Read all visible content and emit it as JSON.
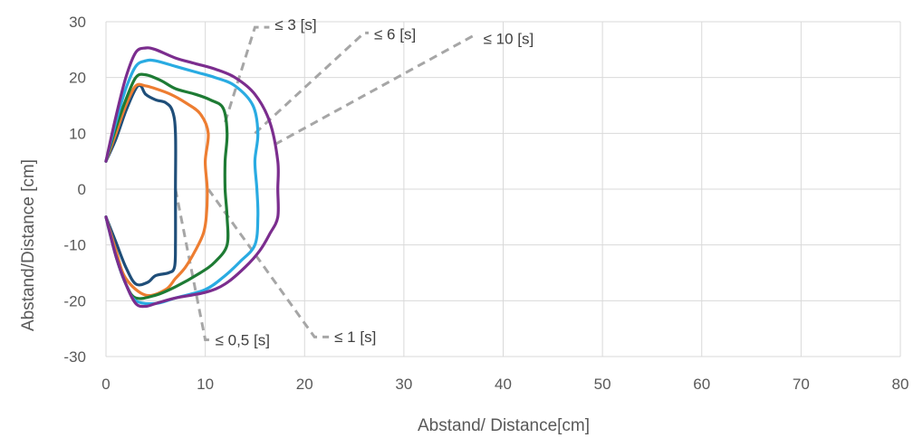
{
  "chart_data": {
    "type": "line",
    "title": "",
    "xlabel": "Abstand/ Distance[cm]",
    "ylabel": "Abstand/Distance [cm]",
    "xlim": [
      0,
      80
    ],
    "ylim": [
      -30,
      30
    ],
    "xticks": [
      0,
      10,
      20,
      30,
      40,
      50,
      60,
      70,
      80
    ],
    "yticks": [
      -30,
      -20,
      -10,
      0,
      10,
      20,
      30
    ],
    "xtick_labels": [
      "0",
      "10",
      "20",
      "30",
      "40",
      "50",
      "60",
      "70",
      "80"
    ],
    "ytick_labels": [
      "-30",
      "-20",
      "-10",
      "0",
      "10",
      "20",
      "30"
    ],
    "grid": true,
    "legend": "none",
    "series": [
      {
        "label": "≤ 0,5 [s]",
        "color": "#1f4e79",
        "points": [
          [
            0,
            5
          ],
          [
            1,
            9
          ],
          [
            2,
            14
          ],
          [
            3,
            18
          ],
          [
            3.5,
            18.5
          ],
          [
            4,
            17
          ],
          [
            5,
            16
          ],
          [
            6,
            15.5
          ],
          [
            6.7,
            14
          ],
          [
            7,
            10
          ],
          [
            7,
            0
          ],
          [
            7,
            -10
          ],
          [
            6.9,
            -14
          ],
          [
            6.3,
            -15
          ],
          [
            5,
            -15.5
          ],
          [
            4.2,
            -16.7
          ],
          [
            3,
            -17
          ],
          [
            2,
            -14
          ],
          [
            1,
            -9.5
          ],
          [
            0,
            -5
          ]
        ]
      },
      {
        "label": "≤ 1 [s]",
        "color": "#ed7d31",
        "points": [
          [
            0,
            5
          ],
          [
            1,
            10
          ],
          [
            2,
            15
          ],
          [
            3,
            18.5
          ],
          [
            4,
            18.5
          ],
          [
            5,
            18
          ],
          [
            6.5,
            17
          ],
          [
            8,
            15.5
          ],
          [
            9.5,
            13.5
          ],
          [
            10.3,
            10
          ],
          [
            10,
            5
          ],
          [
            10.2,
            0
          ],
          [
            10.1,
            -5
          ],
          [
            9.8,
            -8
          ],
          [
            9,
            -11
          ],
          [
            8,
            -14
          ],
          [
            7,
            -16
          ],
          [
            6,
            -18
          ],
          [
            4,
            -19
          ],
          [
            2,
            -16
          ],
          [
            1,
            -11
          ],
          [
            0,
            -5
          ]
        ]
      },
      {
        "label": "",
        "color": "#1e7b34",
        "points": [
          [
            0,
            5
          ],
          [
            1,
            11
          ],
          [
            2,
            16
          ],
          [
            3,
            20
          ],
          [
            4,
            20.5
          ],
          [
            5.5,
            19.5
          ],
          [
            7,
            18
          ],
          [
            9,
            17
          ],
          [
            10.5,
            16
          ],
          [
            11.8,
            14.5
          ],
          [
            12.2,
            10
          ],
          [
            12,
            5
          ],
          [
            12,
            0
          ],
          [
            12.2,
            -5
          ],
          [
            12.2,
            -10
          ],
          [
            11,
            -13
          ],
          [
            9.5,
            -15
          ],
          [
            7,
            -17.5
          ],
          [
            5,
            -19
          ],
          [
            3,
            -19.5
          ],
          [
            2,
            -17
          ],
          [
            1,
            -12
          ],
          [
            0,
            -5
          ]
        ]
      },
      {
        "label": "≤ 3 [s]",
        "color": "#29abe2",
        "points": [
          [
            0,
            5
          ],
          [
            1,
            12
          ],
          [
            2,
            18
          ],
          [
            3,
            22
          ],
          [
            4,
            23
          ],
          [
            5,
            23
          ],
          [
            7,
            22
          ],
          [
            9,
            21
          ],
          [
            11,
            20
          ],
          [
            13,
            18.5
          ],
          [
            14.8,
            15
          ],
          [
            15.3,
            10
          ],
          [
            15,
            5
          ],
          [
            15.2,
            0
          ],
          [
            15.3,
            -5
          ],
          [
            15,
            -10
          ],
          [
            13.5,
            -13
          ],
          [
            12,
            -15.5
          ],
          [
            10,
            -18
          ],
          [
            7,
            -19.5
          ],
          [
            5,
            -20.5
          ],
          [
            3,
            -20
          ],
          [
            2,
            -17
          ],
          [
            1,
            -12
          ],
          [
            0,
            -5
          ]
        ]
      },
      {
        "label": "≤ 10 [s]",
        "color": "#7b2d8e",
        "points": [
          [
            0,
            5
          ],
          [
            1,
            13
          ],
          [
            2,
            20
          ],
          [
            3,
            24.5
          ],
          [
            4,
            25.3
          ],
          [
            5,
            25
          ],
          [
            7,
            23.5
          ],
          [
            9,
            22.5
          ],
          [
            11,
            21.5
          ],
          [
            13,
            20
          ],
          [
            15,
            17
          ],
          [
            16.5,
            12
          ],
          [
            17.3,
            5
          ],
          [
            17.3,
            0
          ],
          [
            17.3,
            -5
          ],
          [
            16.5,
            -8
          ],
          [
            15.5,
            -11
          ],
          [
            14,
            -14
          ],
          [
            12,
            -17
          ],
          [
            10,
            -18.5
          ],
          [
            7,
            -19.5
          ],
          [
            5,
            -20.5
          ],
          [
            4,
            -21
          ],
          [
            3,
            -20.5
          ],
          [
            2,
            -17
          ],
          [
            1,
            -12
          ],
          [
            0,
            -5
          ]
        ]
      }
    ],
    "annotations": [
      {
        "text": "≤ 3 [s]",
        "anchor": [
          12,
          12
        ],
        "corner": [
          15,
          29
        ],
        "label_pos": [
          17,
          29.5
        ]
      },
      {
        "text": "≤ 6 [s]",
        "anchor": [
          15,
          10
        ],
        "corner": [
          26,
          28
        ],
        "label_pos": [
          27,
          27.8
        ]
      },
      {
        "text": "≤ 10 [s]",
        "anchor": [
          17,
          8
        ],
        "corner": [
          37,
          27.5
        ],
        "label_pos": [
          38,
          27
        ]
      },
      {
        "text": "≤ 0,5 [s]",
        "anchor": [
          7,
          0
        ],
        "corner": [
          10,
          -27
        ],
        "label_pos": [
          11,
          -27
        ]
      },
      {
        "text": "≤ 1 [s]",
        "anchor": [
          10.3,
          0
        ],
        "corner": [
          21,
          -26.5
        ],
        "label_pos": [
          23,
          -26.4
        ]
      }
    ]
  }
}
